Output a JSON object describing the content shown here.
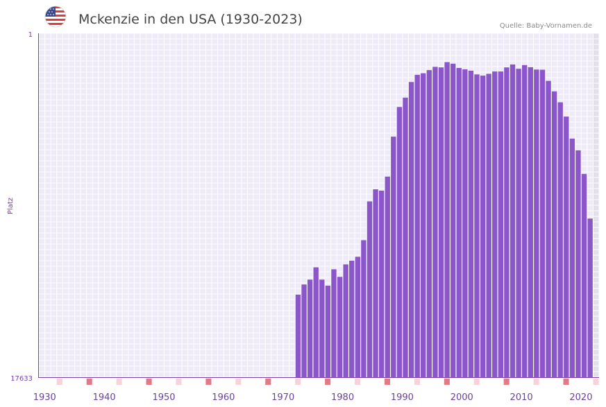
{
  "chart_data": {
    "type": "bar",
    "title": "Mckenzie in den USA (1930-2023)",
    "source": "Quelle: Baby-Vornamen.de",
    "ylabel": "Platz",
    "y_top_label": "1",
    "y_bottom_label": "17633",
    "ylim": [
      17633,
      1
    ],
    "x_range": [
      1930,
      2023
    ],
    "x_ticks": [
      "1930",
      "1940",
      "1950",
      "1960",
      "1970",
      "1980",
      "1990",
      "2000",
      "2010",
      "2020"
    ],
    "series": [
      {
        "name": "Mckenzie",
        "x": [
          1973,
          1974,
          1975,
          1976,
          1977,
          1978,
          1979,
          1980,
          1981,
          1982,
          1983,
          1984,
          1985,
          1986,
          1987,
          1988,
          1989,
          1990,
          1991,
          1992,
          1993,
          1994,
          1995,
          1996,
          1997,
          1998,
          1999,
          2000,
          2001,
          2002,
          2003,
          2004,
          2005,
          2006,
          2007,
          2008,
          2009,
          2010,
          2011,
          2012,
          2013,
          2014,
          2015,
          2016,
          2017,
          2018,
          2019,
          2020,
          2021,
          2022
        ],
        "values": [
          13400,
          12880,
          12630,
          12000,
          12630,
          12940,
          12100,
          12490,
          11850,
          11660,
          11460,
          10610,
          8620,
          8000,
          8070,
          7350,
          5300,
          3780,
          3300,
          2500,
          2130,
          2050,
          1890,
          1720,
          1750,
          1480,
          1560,
          1780,
          1850,
          1920,
          2110,
          2170,
          2080,
          1960,
          1960,
          1750,
          1600,
          1820,
          1630,
          1740,
          1860,
          1870,
          2440,
          2980,
          3540,
          4270,
          5400,
          6000,
          7210,
          9500
        ]
      }
    ]
  }
}
